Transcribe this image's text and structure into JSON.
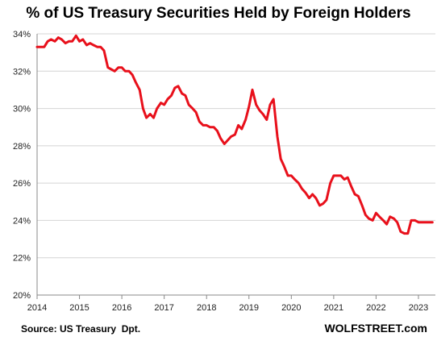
{
  "title": "% of US Treasury  Securities Held by Foreign Holders",
  "source": "Source: US Treasury  Dpt.",
  "brand": "WOLFSTREET.com",
  "chart_data": {
    "type": "line",
    "title": "% of US Treasury  Securities Held by Foreign Holders",
    "xlabel": "",
    "ylabel": "",
    "xlim": [
      2014.0,
      2023.4
    ],
    "ylim": [
      20,
      34
    ],
    "y_ticks": [
      20,
      22,
      24,
      26,
      28,
      30,
      32,
      34
    ],
    "y_tick_labels": [
      "20%",
      "22%",
      "24%",
      "26%",
      "28%",
      "30%",
      "32%",
      "34%"
    ],
    "x_ticks": [
      2014,
      2015,
      2016,
      2017,
      2018,
      2019,
      2020,
      2021,
      2022,
      2023
    ],
    "x_tick_labels": [
      "2014",
      "2015",
      "2016",
      "2017",
      "2018",
      "2019",
      "2020",
      "2021",
      "2022",
      "2023"
    ],
    "grid": "horizontal",
    "series": [
      {
        "color": "#e8101b",
        "x": [
          2014.0,
          2014.08,
          2014.17,
          2014.25,
          2014.33,
          2014.42,
          2014.5,
          2014.58,
          2014.67,
          2014.75,
          2014.83,
          2014.92,
          2015.0,
          2015.08,
          2015.17,
          2015.25,
          2015.33,
          2015.42,
          2015.5,
          2015.58,
          2015.67,
          2015.75,
          2015.83,
          2015.92,
          2016.0,
          2016.08,
          2016.17,
          2016.25,
          2016.33,
          2016.42,
          2016.5,
          2016.58,
          2016.67,
          2016.75,
          2016.83,
          2016.92,
          2017.0,
          2017.08,
          2017.17,
          2017.25,
          2017.33,
          2017.42,
          2017.5,
          2017.58,
          2017.67,
          2017.75,
          2017.83,
          2017.92,
          2018.0,
          2018.08,
          2018.17,
          2018.25,
          2018.33,
          2018.42,
          2018.5,
          2018.58,
          2018.67,
          2018.75,
          2018.83,
          2018.92,
          2019.0,
          2019.08,
          2019.17,
          2019.25,
          2019.33,
          2019.42,
          2019.5,
          2019.58,
          2019.67,
          2019.75,
          2019.83,
          2019.92,
          2020.0,
          2020.08,
          2020.17,
          2020.25,
          2020.33,
          2020.42,
          2020.5,
          2020.58,
          2020.67,
          2020.75,
          2020.83,
          2020.92,
          2021.0,
          2021.08,
          2021.17,
          2021.25,
          2021.33,
          2021.42,
          2021.5,
          2021.58,
          2021.67,
          2021.75,
          2021.83,
          2021.92,
          2022.0,
          2022.08,
          2022.17,
          2022.25,
          2022.33,
          2022.42,
          2022.5,
          2022.58,
          2022.67,
          2022.75,
          2022.83,
          2022.92,
          2023.0,
          2023.08,
          2023.17,
          2023.25,
          2023.33
        ],
        "y": [
          33.3,
          33.3,
          33.3,
          33.6,
          33.7,
          33.6,
          33.8,
          33.7,
          33.5,
          33.6,
          33.6,
          33.9,
          33.6,
          33.7,
          33.4,
          33.5,
          33.4,
          33.3,
          33.3,
          33.1,
          32.2,
          32.1,
          32.0,
          32.2,
          32.2,
          32.0,
          32.0,
          31.8,
          31.4,
          31.0,
          30.0,
          29.5,
          29.7,
          29.5,
          30.0,
          30.3,
          30.2,
          30.5,
          30.7,
          31.1,
          31.2,
          30.8,
          30.7,
          30.2,
          30.0,
          29.8,
          29.3,
          29.1,
          29.1,
          29.0,
          29.0,
          28.8,
          28.4,
          28.1,
          28.3,
          28.5,
          28.6,
          29.1,
          28.9,
          29.4,
          30.1,
          31.0,
          30.2,
          29.9,
          29.7,
          29.4,
          30.2,
          30.5,
          28.5,
          27.3,
          26.9,
          26.4,
          26.4,
          26.2,
          26.0,
          25.7,
          25.5,
          25.2,
          25.4,
          25.2,
          24.8,
          24.9,
          25.1,
          26.0,
          26.4,
          26.4,
          26.4,
          26.2,
          26.3,
          25.8,
          25.4,
          25.3,
          24.8,
          24.3,
          24.1,
          24.0,
          24.4,
          24.2,
          24.0,
          23.8,
          24.2,
          24.1,
          23.9,
          23.4,
          23.3,
          23.3,
          24.0,
          24.0,
          23.9,
          23.9,
          23.9,
          23.9,
          23.9
        ]
      }
    ]
  }
}
